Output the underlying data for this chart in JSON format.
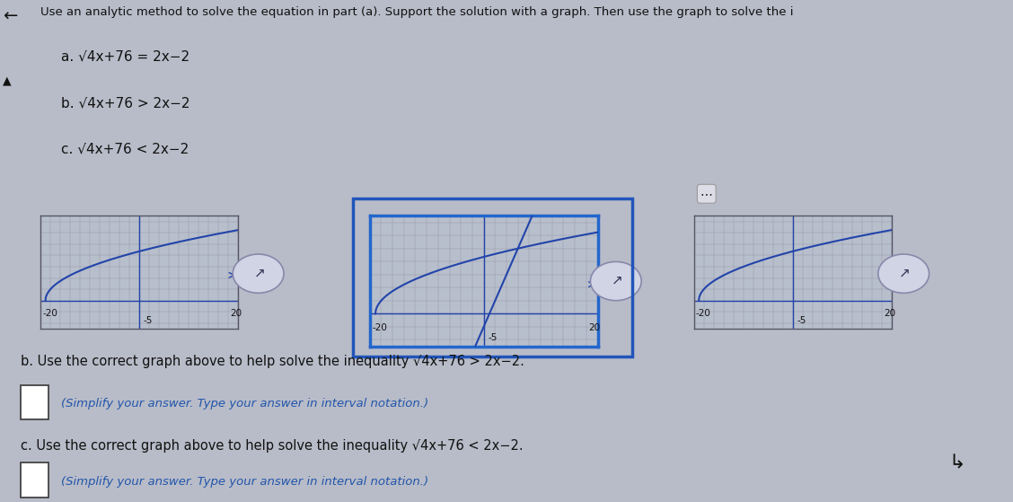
{
  "title_text": "Use an analytic method to solve the equation in part (a). Support the solution with a graph. Then use the graph to solve the i",
  "parts": [
    "a. √4x+76 = 2x−2",
    "b. √4x+76 > 2x−2",
    "c. √4x+76 < 2x−2"
  ],
  "graph_xlim": [
    -20,
    20
  ],
  "graph_ylim": [
    -5,
    15
  ],
  "line_color": "#2244aa",
  "grid_color": "#9999aa",
  "graph_bg": "#b8bfcc",
  "page_bg": "#b8bcc8",
  "selected_border": "#2266cc",
  "normal_border": "#555566",
  "text_color": "#111111",
  "b_label": "b. Use the correct graph above to help solve the inequality √4x+76 > 2x−2.",
  "c_label": "c. Use the correct graph above to help solve the inequality √4x+76 < 2x−2.",
  "simplify_text": "(Simplify your answer. Type your answer in interval notation.)"
}
